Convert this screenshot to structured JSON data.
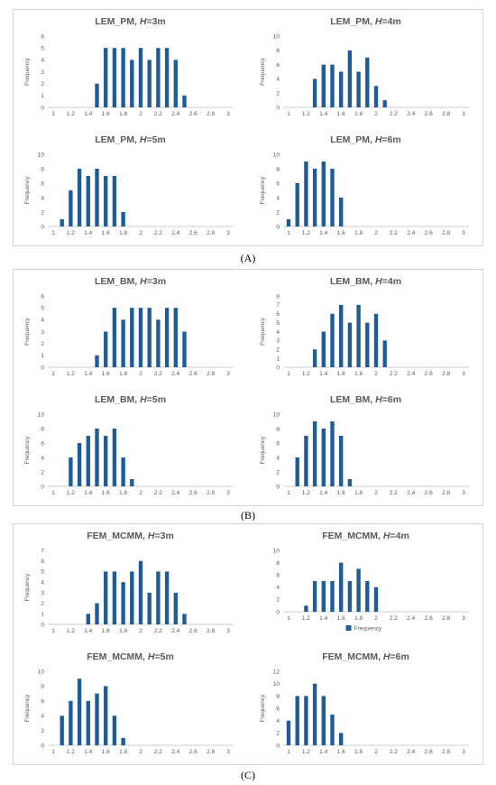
{
  "captions": [
    "(A)",
    "(B)",
    "(C)"
  ],
  "chart_data": [
    {
      "id": "A1",
      "type": "bar",
      "title": "LEM_PM, H=3m",
      "title_prefix": "LEM_PM, ",
      "title_var": "H",
      "title_suffix": "=3m",
      "ylabel": "Frequency",
      "ylim": [
        0,
        6
      ],
      "yticks": [
        0,
        1,
        2,
        3,
        4,
        5,
        6
      ],
      "xticks": [
        "1",
        "1.2",
        "1.4",
        "1.6",
        "1.8",
        "2",
        "2.2",
        "2.4",
        "2.6",
        "2.8",
        "3"
      ],
      "x": [
        1.5,
        1.6,
        1.7,
        1.8,
        1.9,
        2.0,
        2.1,
        2.2,
        2.3,
        2.4,
        2.5
      ],
      "values": [
        2,
        5,
        5,
        5,
        4,
        5,
        4,
        5,
        5,
        4,
        1
      ]
    },
    {
      "id": "A2",
      "type": "bar",
      "title": "LEM_PM, H=4m",
      "title_prefix": "LEM_PM, ",
      "title_var": "H",
      "title_suffix": "=4m",
      "ylabel": "Frequency",
      "ylim": [
        0,
        10
      ],
      "yticks": [
        0,
        2,
        4,
        6,
        8,
        10
      ],
      "xticks": [
        "1",
        "1.2",
        "1.4",
        "1.6",
        "1.8",
        "2",
        "2.2",
        "2.4",
        "2.6",
        "2.8",
        "3"
      ],
      "x": [
        1.3,
        1.4,
        1.5,
        1.6,
        1.7,
        1.8,
        1.9,
        2.0,
        2.1
      ],
      "values": [
        4,
        6,
        6,
        5,
        8,
        5,
        7,
        3,
        1
      ]
    },
    {
      "id": "A3",
      "type": "bar",
      "title": "LEM_PM, H=5m",
      "title_prefix": "LEM_PM, ",
      "title_var": "H",
      "title_suffix": "=5m",
      "ylabel": "Frequency",
      "ylim": [
        0,
        10
      ],
      "yticks": [
        0,
        2,
        4,
        6,
        8,
        10
      ],
      "xticks": [
        "1",
        "1.2",
        "1.4",
        "1.6",
        "1.8",
        "2",
        "2.2",
        "2.4",
        "2.6",
        "2.8",
        "3"
      ],
      "x": [
        1.1,
        1.2,
        1.3,
        1.4,
        1.5,
        1.6,
        1.7,
        1.8
      ],
      "values": [
        1,
        5,
        8,
        7,
        8,
        7,
        7,
        2
      ]
    },
    {
      "id": "A4",
      "type": "bar",
      "title": "LEM_PM, H=6m",
      "title_prefix": "LEM_PM, ",
      "title_var": "H",
      "title_suffix": "=6m",
      "ylabel": "Frequency",
      "ylim": [
        0,
        10
      ],
      "yticks": [
        0,
        2,
        4,
        6,
        8,
        10
      ],
      "xticks": [
        "1",
        "1.2",
        "1.4",
        "1.6",
        "1.8",
        "2",
        "2.2",
        "2.4",
        "2.6",
        "2.8",
        "3"
      ],
      "x": [
        1.0,
        1.1,
        1.2,
        1.3,
        1.4,
        1.5,
        1.6
      ],
      "values": [
        1,
        6,
        9,
        8,
        9,
        8,
        4
      ]
    },
    {
      "id": "B1",
      "type": "bar",
      "title": "LEM_BM, H=3m",
      "title_prefix": "LEM_BM, ",
      "title_var": "H",
      "title_suffix": "=3m",
      "ylabel": "Frequency",
      "ylim": [
        0,
        6
      ],
      "yticks": [
        0,
        1,
        2,
        3,
        4,
        5,
        6
      ],
      "xticks": [
        "1",
        "1.2",
        "1.4",
        "1.6",
        "1.8",
        "2",
        "2.2",
        "2.4",
        "2.6",
        "2.8",
        "3"
      ],
      "x": [
        1.5,
        1.6,
        1.7,
        1.8,
        1.9,
        2.0,
        2.1,
        2.2,
        2.3,
        2.4,
        2.5
      ],
      "values": [
        1,
        3,
        5,
        4,
        5,
        5,
        5,
        4,
        5,
        5,
        3
      ]
    },
    {
      "id": "B2",
      "type": "bar",
      "title": "LEM_BM, H=4m",
      "title_prefix": "LEM_BM, ",
      "title_var": "H",
      "title_suffix": "=4m",
      "ylabel": "Frequency",
      "ylim": [
        0,
        8
      ],
      "yticks": [
        0,
        1,
        2,
        3,
        4,
        5,
        6,
        7,
        8
      ],
      "xticks": [
        "1",
        "1.2",
        "1.4",
        "1.6",
        "1.8",
        "2",
        "2.2",
        "2.4",
        "2.6",
        "2.8",
        "3"
      ],
      "x": [
        1.3,
        1.4,
        1.5,
        1.6,
        1.7,
        1.8,
        1.9,
        2.0,
        2.1
      ],
      "values": [
        2,
        4,
        6,
        7,
        5,
        7,
        5,
        6,
        3
      ]
    },
    {
      "id": "B3",
      "type": "bar",
      "title": "LEM_BM, H=5m",
      "title_prefix": "LEM_BM, ",
      "title_var": "H",
      "title_suffix": "=5m",
      "ylabel": "Frequency",
      "ylim": [
        0,
        10
      ],
      "yticks": [
        0,
        2,
        4,
        6,
        8,
        10
      ],
      "xticks": [
        "1",
        "1.2",
        "1.4",
        "1.6",
        "1.8",
        "2",
        "2.2",
        "2.4",
        "2.6",
        "2.8",
        "3"
      ],
      "x": [
        1.2,
        1.3,
        1.4,
        1.5,
        1.6,
        1.7,
        1.8,
        1.9
      ],
      "values": [
        4,
        6,
        7,
        8,
        7,
        8,
        4,
        1
      ]
    },
    {
      "id": "B4",
      "type": "bar",
      "title": "LEM_BM, H=6m",
      "title_prefix": "LEM_BM, ",
      "title_var": "H",
      "title_suffix": "=6m",
      "ylabel": "Frequency",
      "ylim": [
        0,
        10
      ],
      "yticks": [
        0,
        2,
        4,
        6,
        8,
        10
      ],
      "xticks": [
        "1",
        "1.2",
        "1.4",
        "1.6",
        "1.8",
        "2",
        "2.2",
        "2.4",
        "2.6",
        "2.8",
        "3"
      ],
      "x": [
        1.1,
        1.2,
        1.3,
        1.4,
        1.5,
        1.6,
        1.7
      ],
      "values": [
        4,
        7,
        9,
        8,
        9,
        7,
        1
      ]
    },
    {
      "id": "C1",
      "type": "bar",
      "title": "FEM_MCMM, H=3m",
      "title_prefix": "FEM_MCMM, ",
      "title_var": "H",
      "title_suffix": "=3m",
      "ylabel": "Frequency",
      "ylim": [
        0,
        7
      ],
      "yticks": [
        0,
        1,
        2,
        3,
        4,
        5,
        6,
        7
      ],
      "xticks": [
        "1",
        "1.2",
        "1.4",
        "1.6",
        "1.8",
        "2",
        "2.2",
        "2.4",
        "2.6",
        "2.8",
        "3"
      ],
      "x": [
        1.4,
        1.5,
        1.6,
        1.7,
        1.8,
        1.9,
        2.0,
        2.1,
        2.2,
        2.3,
        2.4,
        2.5
      ],
      "values": [
        1,
        2,
        5,
        5,
        4,
        5,
        6,
        3,
        5,
        5,
        3,
        1
      ]
    },
    {
      "id": "C2",
      "type": "bar",
      "title": "FEM_MCMM, H=4m",
      "title_prefix": "FEM_MCMM, ",
      "title_var": "H",
      "title_suffix": "=4m",
      "ylabel": "",
      "ylim": [
        0,
        10
      ],
      "yticks": [
        0,
        2,
        4,
        6,
        8,
        10
      ],
      "xticks": [
        "1",
        "1.2",
        "1.4",
        "1.6",
        "1.8",
        "2",
        "2.2",
        "2.4",
        "2.6",
        "2.8",
        "3"
      ],
      "x": [
        1.2,
        1.3,
        1.4,
        1.5,
        1.6,
        1.7,
        1.8,
        1.9,
        2.0
      ],
      "values": [
        1,
        5,
        5,
        5,
        8,
        5,
        7,
        5,
        4
      ],
      "legend": "Frequency"
    },
    {
      "id": "C3",
      "type": "bar",
      "title": "FEM_MCMM, H=5m",
      "title_prefix": "FEM_MCMM, ",
      "title_var": "H",
      "title_suffix": "=5m",
      "ylabel": "Frequency",
      "ylim": [
        0,
        10
      ],
      "yticks": [
        0,
        2,
        4,
        6,
        8,
        10
      ],
      "xticks": [
        "1",
        "1.2",
        "1.4",
        "1.6",
        "1.8",
        "2",
        "2.2",
        "2.4",
        "2.6",
        "2.8",
        "3"
      ],
      "x": [
        1.1,
        1.2,
        1.3,
        1.4,
        1.5,
        1.6,
        1.7,
        1.8
      ],
      "values": [
        4,
        6,
        9,
        6,
        7,
        8,
        4,
        1
      ]
    },
    {
      "id": "C4",
      "type": "bar",
      "title": "FEM_MCMM, H=6m",
      "title_prefix": "FEM_MCMM, ",
      "title_var": "H",
      "title_suffix": "=6m",
      "ylabel": "Frequency",
      "ylim": [
        0,
        12
      ],
      "yticks": [
        0,
        2,
        4,
        6,
        8,
        10,
        12
      ],
      "xticks": [
        "1",
        "1.2",
        "1.4",
        "1.6",
        "1.8",
        "2",
        "2.2",
        "2.4",
        "2.6",
        "2.8",
        "3"
      ],
      "x": [
        1.0,
        1.1,
        1.2,
        1.3,
        1.4,
        1.5,
        1.6
      ],
      "values": [
        4,
        8,
        8,
        10,
        8,
        5,
        2
      ]
    }
  ],
  "colors": {
    "bar": "#1f5b94",
    "axis": "#bfbfbf",
    "text": "#595959"
  }
}
